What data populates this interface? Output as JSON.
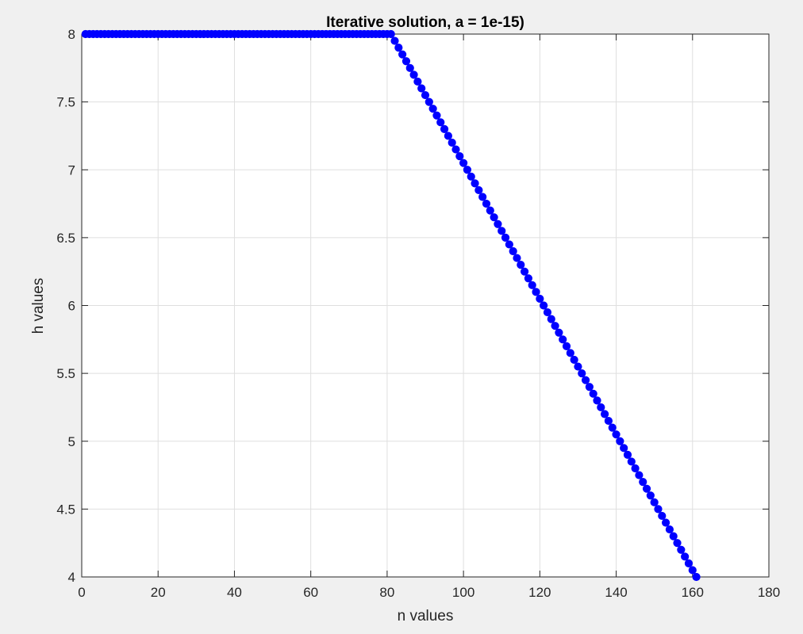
{
  "chart_data": {
    "type": "scatter",
    "title": "Iterative solution, a = 1e-15)",
    "xlabel": "n values",
    "ylabel": "h values",
    "xlim": [
      0,
      180
    ],
    "ylim": [
      4,
      8
    ],
    "xticks": [
      "0",
      "20",
      "40",
      "60",
      "80",
      "100",
      "120",
      "140",
      "160",
      "180"
    ],
    "yticks": [
      "4",
      "4.5",
      "5",
      "5.5",
      "6",
      "6.5",
      "7",
      "7.5",
      "8"
    ],
    "grid": true,
    "marker": "filled circle",
    "marker_color": "#0000ff",
    "series": [
      {
        "x_start": 1,
        "x_end": 161,
        "x_step": 1,
        "plateau_until_x": 81,
        "plateau_value": 8,
        "decline_slope": -0.05,
        "final_value": 4.0
      }
    ]
  }
}
